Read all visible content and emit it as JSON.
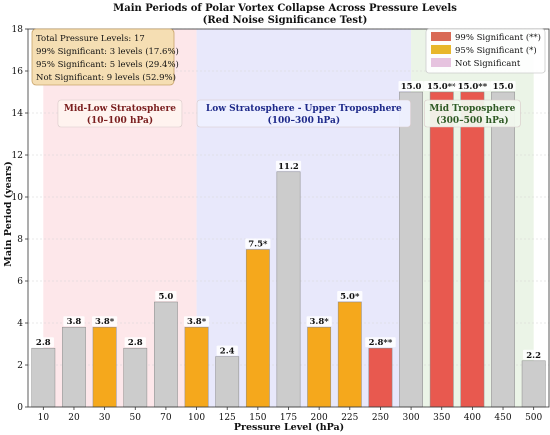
{
  "chart_data": {
    "type": "bar",
    "title": "Main Periods of Polar Vortex Collapse Across Pressure Levels",
    "subtitle": "(Red Noise Significance Test)",
    "xlabel": "Pressure Level (hPa)",
    "ylabel": "Main Period (years)",
    "ylim": [
      0,
      18
    ],
    "yticks": [
      0,
      2,
      4,
      6,
      8,
      10,
      12,
      14,
      16,
      18
    ],
    "grid": true,
    "categories": [
      "10",
      "20",
      "30",
      "50",
      "70",
      "100",
      "125",
      "150",
      "175",
      "200",
      "225",
      "250",
      "300",
      "350",
      "400",
      "450",
      "500"
    ],
    "values": [
      2.8,
      3.8,
      3.8,
      2.8,
      5.0,
      3.8,
      2.4,
      7.5,
      11.2,
      3.8,
      5.0,
      2.8,
      15.0,
      15.0,
      15.0,
      15.0,
      2.2
    ],
    "bar_labels": [
      "2.8",
      "3.8",
      "3.8*",
      "2.8",
      "5.0",
      "3.8*",
      "2.4",
      "7.5*",
      "11.2",
      "3.8*",
      "5.0*",
      "2.8**",
      "15.0",
      "15.0**",
      "15.0**",
      "15.0",
      "2.2"
    ],
    "significance": [
      "none",
      "none",
      "95",
      "none",
      "none",
      "95",
      "none",
      "95",
      "none",
      "95",
      "95",
      "99",
      "none",
      "99",
      "99",
      "none",
      "none"
    ],
    "colors": {
      "99": "#e8594f",
      "95": "#f5a81c",
      "none": "#cccccc",
      "legend_none": "#e6c3df"
    },
    "legend": {
      "placement": "top-right",
      "entries": [
        {
          "key": "99",
          "label": "99% Significant (**)"
        },
        {
          "key": "95",
          "label": "95% Significant (*)"
        },
        {
          "key": "none",
          "label": "Not Significant"
        }
      ]
    },
    "regions": [
      {
        "label_line1": "Mid-Low Stratosphere",
        "label_line2": "(10–100 hPa)",
        "from": 0,
        "to": 5,
        "fill": "#fde3e6",
        "text_color": "#7a1f1f",
        "box_fill": "#fff3ef"
      },
      {
        "label_line1": "Low Stratosphere - Upper Troposphere",
        "label_line2": "(100–300 hPa)",
        "from": 5,
        "to": 12,
        "fill": "#e4e4fa",
        "text_color": "#1e2a8a",
        "box_fill": "#eef0ff"
      },
      {
        "label_line1": "Mid Troposphere",
        "label_line2": "(300–500 hPa)",
        "from": 12,
        "to": 16,
        "fill": "#e7f2e3",
        "text_color": "#2f5a25",
        "box_fill": "#f1f8ee"
      }
    ],
    "summary": [
      "Total Pressure Levels: 17",
      "99% Significant: 3 levels (17.6%)",
      "95% Significant: 5 levels (29.4%)",
      "Not Significant: 9 levels (52.9%)"
    ]
  }
}
